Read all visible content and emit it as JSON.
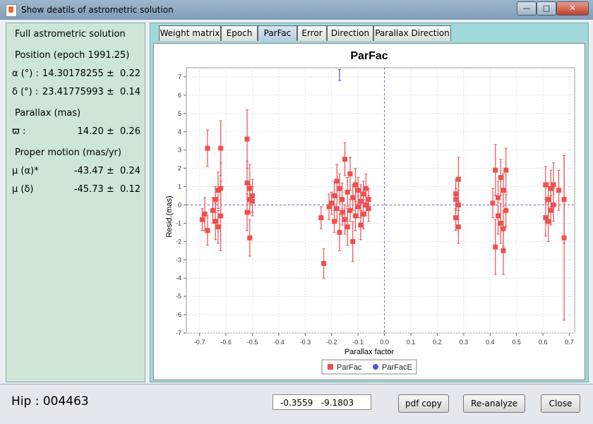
{
  "window": {
    "title": "Show deatils of astrometric solution"
  },
  "left_panel": {
    "heading": "Full astrometric solution",
    "position_heading": "Position (epoch 1991.25)",
    "alpha_label": "α (°) :",
    "alpha_value": "14.30178255 ±  0.22",
    "delta_label": "δ (°) :",
    "delta_value": "23.41775993 ±  0.14",
    "parallax_heading": "Parallax (mas)",
    "parallax_label": "ϖ :",
    "parallax_value": "14.20 ±  0.26",
    "pm_heading": "Proper motion (mas/yr)",
    "pma_label": "μ (α)*",
    "pma_value": "-43.47 ±  0.24",
    "pmd_label": "μ (δ)",
    "pmd_value": "-45.73 ±  0.12"
  },
  "tabs": [
    "Weight matrix",
    "Epoch",
    "ParFac",
    "Error",
    "Direction",
    "Parallax Direction"
  ],
  "active_tab": "ParFac",
  "chart_data": {
    "type": "scatter",
    "title": "ParFac",
    "xlabel": "Parallax factor",
    "ylabel": "Resid.(mas)",
    "xlim": [
      -0.75,
      0.72
    ],
    "ylim": [
      -7,
      7.5
    ],
    "xticks": [
      -0.7,
      -0.6,
      -0.5,
      -0.4,
      -0.3,
      -0.2,
      -0.1,
      0.0,
      0.1,
      0.2,
      0.3,
      0.4,
      0.5,
      0.6,
      0.7
    ],
    "yticks": [
      -7,
      -6,
      -5,
      -4,
      -3,
      -2,
      -1,
      0,
      1,
      2,
      3,
      4,
      5,
      6,
      7
    ],
    "grid": true,
    "legend_position": "bottom",
    "series": [
      {
        "name": "ParFac",
        "color": "#f05050",
        "marker": "square",
        "points": [
          [
            -0.69,
            -0.8,
            0.6
          ],
          [
            -0.68,
            -0.5,
            0.9
          ],
          [
            -0.67,
            3.1,
            1.0
          ],
          [
            -0.67,
            -1.4,
            0.8
          ],
          [
            -0.65,
            -0.3,
            0.7
          ],
          [
            -0.64,
            0.3,
            0.7
          ],
          [
            -0.64,
            -0.9,
            1.0
          ],
          [
            -0.63,
            0.8,
            1.0
          ],
          [
            -0.63,
            -1.2,
            0.9
          ],
          [
            -0.62,
            0.9,
            1.4
          ],
          [
            -0.62,
            3.1,
            1.5
          ],
          [
            -0.62,
            -0.6,
            1.9
          ],
          [
            -0.52,
            3.6,
            1.6
          ],
          [
            -0.52,
            1.2,
            1.2
          ],
          [
            -0.52,
            -0.4,
            1.0
          ],
          [
            -0.51,
            0.3,
            0.8
          ],
          [
            -0.51,
            -1.8,
            1.0
          ],
          [
            -0.51,
            0.9,
            1.3
          ],
          [
            -0.5,
            0.5,
            0.9
          ],
          [
            -0.5,
            0.2,
            0.8
          ],
          [
            -0.24,
            -0.7,
            0.6
          ],
          [
            -0.23,
            -3.2,
            0.8
          ],
          [
            -0.21,
            -0.1,
            0.7
          ],
          [
            -0.2,
            0.1,
            0.6
          ],
          [
            -0.19,
            -0.9,
            0.6
          ],
          [
            -0.19,
            0.5,
            0.8
          ],
          [
            -0.18,
            -0.2,
            0.7
          ],
          [
            -0.18,
            1.3,
            0.9
          ],
          [
            -0.17,
            -1.5,
            1.0
          ],
          [
            -0.17,
            0.9,
            0.8
          ],
          [
            -0.16,
            -0.4,
            0.7
          ],
          [
            -0.16,
            0.3,
            0.9
          ],
          [
            -0.15,
            -0.8,
            0.8
          ],
          [
            -0.15,
            2.5,
            0.9
          ],
          [
            -0.14,
            -1.2,
            1.0
          ],
          [
            -0.14,
            0.7,
            0.8
          ],
          [
            -0.13,
            -0.3,
            0.6
          ],
          [
            -0.13,
            1.7,
            0.9
          ],
          [
            -0.12,
            -2.0,
            1.1
          ],
          [
            -0.12,
            0.4,
            0.7
          ],
          [
            -0.11,
            -0.6,
            0.8
          ],
          [
            -0.11,
            1.1,
            0.9
          ],
          [
            -0.1,
            -0.1,
            0.6
          ],
          [
            -0.1,
            0.8,
            0.7
          ],
          [
            -0.09,
            -1.1,
            0.8
          ],
          [
            -0.09,
            0.2,
            0.9
          ],
          [
            -0.08,
            0.6,
            0.7
          ],
          [
            -0.08,
            -0.5,
            0.8
          ],
          [
            -0.07,
            0.0,
            0.6
          ],
          [
            -0.07,
            0.9,
            0.8
          ],
          [
            -0.06,
            -0.2,
            0.7
          ],
          [
            -0.06,
            0.3,
            0.6
          ],
          [
            0.27,
            -0.7,
            0.7
          ],
          [
            0.27,
            0.6,
            0.8
          ],
          [
            0.28,
            -1.2,
            0.9
          ],
          [
            0.28,
            1.4,
            1.2
          ],
          [
            0.28,
            0.0,
            0.8
          ],
          [
            0.27,
            0.3,
            0.6
          ],
          [
            0.41,
            0.1,
            0.8
          ],
          [
            0.42,
            -2.3,
            1.5
          ],
          [
            0.42,
            1.9,
            1.4
          ],
          [
            0.43,
            -0.6,
            1.0
          ],
          [
            0.43,
            0.4,
            0.9
          ],
          [
            0.44,
            -1.0,
            1.1
          ],
          [
            0.44,
            1.5,
            1.0
          ],
          [
            0.45,
            -2.5,
            1.3
          ],
          [
            0.45,
            0.8,
            0.9
          ],
          [
            0.45,
            -1.3,
            1.0
          ],
          [
            0.46,
            1.9,
            1.2
          ],
          [
            0.46,
            -0.3,
            0.9
          ],
          [
            0.61,
            1.1,
            1.0
          ],
          [
            0.61,
            -0.7,
            1.0
          ],
          [
            0.62,
            0.3,
            0.9
          ],
          [
            0.62,
            -0.9,
            1.1
          ],
          [
            0.63,
            0.9,
            1.0
          ],
          [
            0.63,
            -0.3,
            0.8
          ],
          [
            0.64,
            1.1,
            1.2
          ],
          [
            0.64,
            0.0,
            0.9
          ],
          [
            0.66,
            0.8,
            1.1
          ],
          [
            0.68,
            -1.8,
            4.5
          ],
          [
            0.68,
            0.3,
            2.4
          ]
        ]
      },
      {
        "name": "ParFacE",
        "color": "#5050e0",
        "marker": "circle",
        "points": [
          [
            -0.17,
            7.1,
            0.3
          ]
        ]
      }
    ]
  },
  "status": {
    "hip_label": "Hip : 004463",
    "coords": "-0.3559   -9.1803",
    "pdf_button": "pdf copy",
    "reanalyze_button": "Re-analyze",
    "close_button": "Close"
  }
}
